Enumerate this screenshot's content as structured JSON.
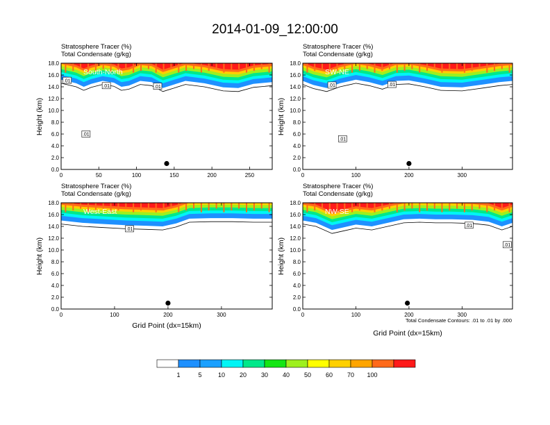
{
  "title": "2014-01-09_12:00:00",
  "header_line1": "Stratosphere Tracer   (%)",
  "header_line2": "Total Condensate   (g/kg)",
  "ylabel": "Height (km)",
  "xlabel": "Grid Point (dx=15km)",
  "contour_note": "Total Condensate Contours: .01 to .01 by .000",
  "colors": {
    "tracer_levels": [
      "#ffffff",
      "#1e90ff",
      "#1aa0ff",
      "#00f5f5",
      "#00e88a",
      "#14e614",
      "#9ef01e",
      "#ffff00",
      "#ffd000",
      "#ffa500",
      "#ff6a1a",
      "#ff1a1a"
    ],
    "frame": "#000000"
  },
  "chart_data": [
    {
      "type": "heatmap",
      "name": "South-North",
      "panel_label": "South-North",
      "ylim": [
        0,
        18
      ],
      "xlim": [
        0,
        280
      ],
      "yticks": [
        "0.0",
        "2.0",
        "4.0",
        "6.0",
        "8.0",
        "10.0",
        "12.0",
        "14.0",
        "16.0",
        "18.0"
      ],
      "xticks": [
        {
          "v": 0,
          "label": "0"
        },
        {
          "v": 50,
          "label": "50"
        },
        {
          "v": 100,
          "label": "100"
        },
        {
          "v": 150,
          "label": "150"
        },
        {
          "v": 200,
          "label": "200"
        },
        {
          "v": 250,
          "label": "250"
        }
      ],
      "tropopause_km": [
        [
          0,
          15.2
        ],
        [
          20,
          14.6
        ],
        [
          30,
          14.0
        ],
        [
          40,
          14.5
        ],
        [
          55,
          15.0
        ],
        [
          70,
          14.7
        ],
        [
          80,
          14.0
        ],
        [
          90,
          14.2
        ],
        [
          105,
          15.0
        ],
        [
          120,
          14.8
        ],
        [
          135,
          13.8
        ],
        [
          150,
          14.4
        ],
        [
          165,
          15.0
        ],
        [
          190,
          14.6
        ],
        [
          215,
          13.9
        ],
        [
          235,
          13.8
        ],
        [
          255,
          14.5
        ],
        [
          280,
          14.8
        ]
      ],
      "contour_labels": [
        {
          "x": 8,
          "y": 15.1,
          "label": ".01"
        },
        {
          "x": 60,
          "y": 14.2,
          "label": ".01"
        },
        {
          "x": 128,
          "y": 14.1,
          "label": ".01"
        },
        {
          "x": 33,
          "y": 6.0,
          "label": ".01"
        }
      ],
      "marker": {
        "x": 140,
        "y": 1.0
      }
    },
    {
      "type": "heatmap",
      "name": "SW-NE",
      "panel_label": "SW-NE",
      "ylim": [
        0,
        18
      ],
      "xlim": [
        0,
        395
      ],
      "yticks": [
        "0.0",
        "2.0",
        "4.0",
        "6.0",
        "8.0",
        "10.0",
        "12.0",
        "14.0",
        "16.0",
        "18.0"
      ],
      "xticks": [
        {
          "v": 0,
          "label": "0"
        },
        {
          "v": 100,
          "label": "100"
        },
        {
          "v": 200,
          "label": "200"
        },
        {
          "v": 300,
          "label": "300"
        }
      ],
      "tropopause_km": [
        [
          0,
          15.0
        ],
        [
          20,
          14.3
        ],
        [
          45,
          13.8
        ],
        [
          70,
          14.6
        ],
        [
          100,
          15.2
        ],
        [
          125,
          14.8
        ],
        [
          150,
          14.2
        ],
        [
          175,
          15.0
        ],
        [
          200,
          15.1
        ],
        [
          230,
          14.6
        ],
        [
          260,
          14.0
        ],
        [
          300,
          13.9
        ],
        [
          340,
          14.4
        ],
        [
          370,
          14.8
        ],
        [
          395,
          15.0
        ]
      ],
      "contour_labels": [
        {
          "x": 55,
          "y": 14.3,
          "label": ".01"
        },
        {
          "x": 168,
          "y": 14.4,
          "label": ".01"
        },
        {
          "x": 75,
          "y": 5.2,
          "label": ".01"
        }
      ],
      "marker": {
        "x": 200,
        "y": 1.0
      }
    },
    {
      "type": "heatmap",
      "name": "West-East",
      "panel_label": "West-East",
      "ylim": [
        0,
        18
      ],
      "xlim": [
        0,
        395
      ],
      "yticks": [
        "0.0",
        "2.0",
        "4.0",
        "6.0",
        "8.0",
        "10.0",
        "12.0",
        "14.0",
        "16.0",
        "18.0"
      ],
      "xticks": [
        {
          "v": 0,
          "label": "0"
        },
        {
          "v": 100,
          "label": "100"
        },
        {
          "v": 200,
          "label": "200"
        },
        {
          "v": 300,
          "label": "300"
        }
      ],
      "tropopause_km": [
        [
          0,
          15.0
        ],
        [
          40,
          14.6
        ],
        [
          80,
          14.4
        ],
        [
          120,
          14.2
        ],
        [
          160,
          14.1
        ],
        [
          190,
          14.0
        ],
        [
          215,
          14.5
        ],
        [
          240,
          15.3
        ],
        [
          280,
          15.4
        ],
        [
          320,
          15.4
        ],
        [
          360,
          15.3
        ],
        [
          395,
          15.3
        ]
      ],
      "contour_labels": [
        {
          "x": 128,
          "y": 13.6,
          "label": ".01"
        }
      ],
      "marker": {
        "x": 200,
        "y": 1.0
      }
    },
    {
      "type": "heatmap",
      "name": "NW-SE",
      "panel_label": "NW-SE",
      "ylim": [
        0,
        18
      ],
      "xlim": [
        0,
        395
      ],
      "yticks": [
        "0.0",
        "2.0",
        "4.0",
        "6.0",
        "8.0",
        "10.0",
        "12.0",
        "14.0",
        "16.0",
        "18.0"
      ],
      "xticks": [
        {
          "v": 0,
          "label": "0"
        },
        {
          "v": 100,
          "label": "100"
        },
        {
          "v": 200,
          "label": "200"
        },
        {
          "v": 300,
          "label": "300"
        }
      ],
      "tropopause_km": [
        [
          0,
          15.0
        ],
        [
          25,
          14.6
        ],
        [
          55,
          13.4
        ],
        [
          75,
          13.8
        ],
        [
          100,
          14.3
        ],
        [
          130,
          14.0
        ],
        [
          160,
          14.6
        ],
        [
          190,
          15.2
        ],
        [
          220,
          15.3
        ],
        [
          250,
          15.2
        ],
        [
          280,
          15.2
        ],
        [
          320,
          15.1
        ],
        [
          350,
          14.8
        ],
        [
          375,
          14.0
        ],
        [
          395,
          14.6
        ]
      ],
      "contour_labels": [
        {
          "x": 313,
          "y": 14.2,
          "label": ".01"
        },
        {
          "x": 385,
          "y": 10.9,
          "label": ".01"
        }
      ],
      "marker": {
        "x": 197,
        "y": 1.0
      }
    }
  ],
  "colorbar": {
    "labels": [
      "1",
      "5",
      "10",
      "20",
      "30",
      "40",
      "50",
      "60",
      "70",
      "100"
    ]
  }
}
